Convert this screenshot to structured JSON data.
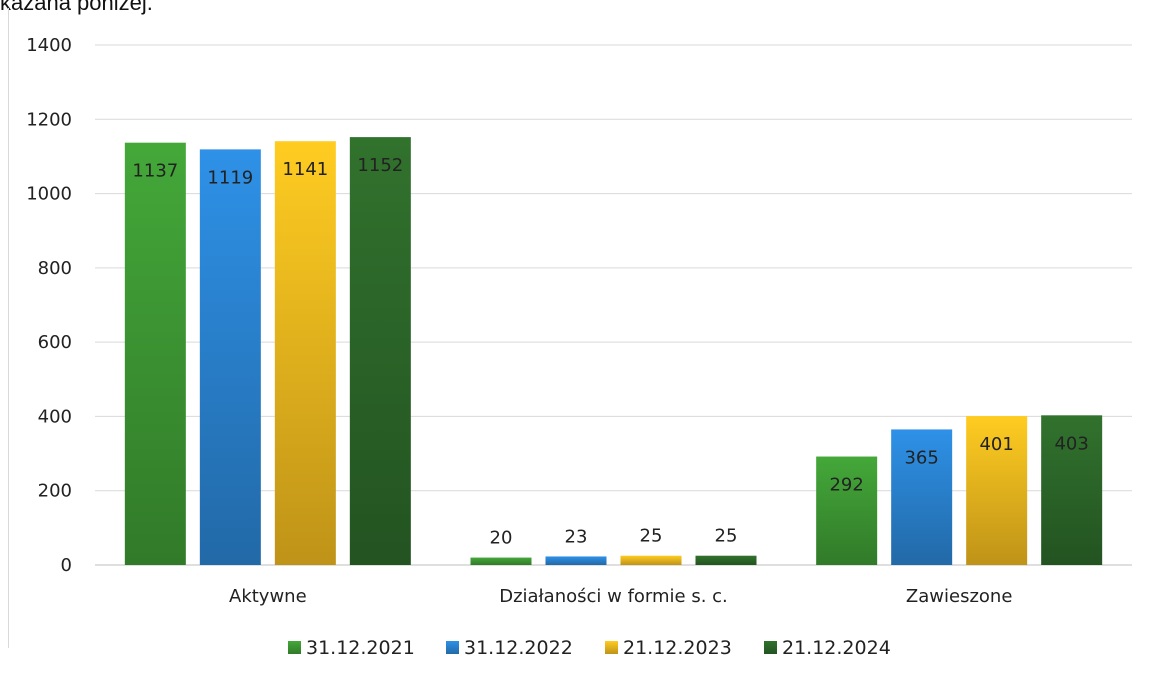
{
  "page": {
    "caption": "kazana poniżej."
  },
  "chart_data": {
    "type": "bar",
    "categories": [
      "Aktywne",
      "Działaności w formie s. c.",
      "Zawieszone"
    ],
    "series": [
      {
        "name": "31.12.2021",
        "values": [
          1137,
          20,
          292
        ],
        "color": "#3f9c35"
      },
      {
        "name": "31.12.2022",
        "values": [
          1119,
          23,
          365
        ],
        "color": "#2b86d6"
      },
      {
        "name": "21.12.2023",
        "values": [
          1141,
          25,
          401
        ],
        "color": "#f5bd1f"
      },
      {
        "name": "21.12.2024",
        "values": [
          1152,
          25,
          403
        ],
        "color": "#2d6a2a"
      }
    ],
    "yticks": [
      0,
      200,
      400,
      600,
      800,
      1000,
      1200,
      1400
    ],
    "ylim": [
      0,
      1400
    ],
    "grid": true,
    "legend_position": "bottom",
    "data_labels": true
  }
}
